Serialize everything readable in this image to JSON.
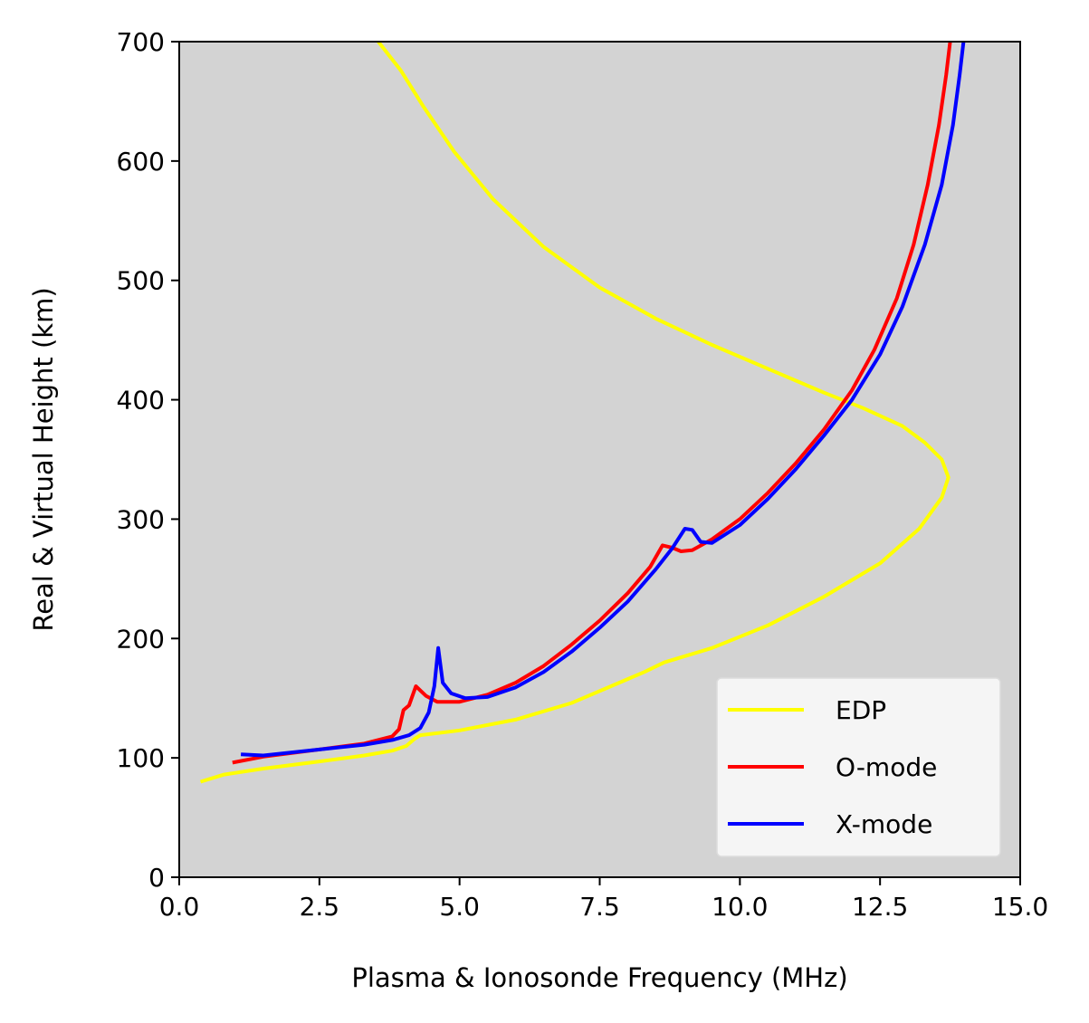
{
  "chart_data": {
    "type": "line",
    "title": "",
    "xlabel": "Plasma & Ionosonde Frequency (MHz)",
    "ylabel": "Real & Virtual Height (km)",
    "xlim": [
      0,
      15
    ],
    "ylim": [
      0,
      700
    ],
    "x_ticks": [
      0,
      2.5,
      5,
      7.5,
      10,
      12.5,
      15
    ],
    "x_tick_labels": [
      "0.0",
      "2.5",
      "5.0",
      "7.5",
      "10.0",
      "12.5",
      "15.0"
    ],
    "y_ticks": [
      0,
      100,
      200,
      300,
      400,
      500,
      600,
      700
    ],
    "y_tick_labels": [
      "0",
      "100",
      "200",
      "300",
      "400",
      "500",
      "600",
      "700"
    ],
    "grid": false,
    "background_color": "#d3d3d3",
    "legend_position": "lower-right",
    "series": [
      {
        "name": "EDP",
        "color": "#ffff00",
        "points": [
          [
            0.38,
            80
          ],
          [
            0.8,
            86
          ],
          [
            1.5,
            91
          ],
          [
            2.5,
            97
          ],
          [
            3.3,
            102
          ],
          [
            3.8,
            106
          ],
          [
            4.05,
            110
          ],
          [
            4.2,
            116
          ],
          [
            4.3,
            119
          ],
          [
            5.0,
            123
          ],
          [
            6.0,
            132
          ],
          [
            7.0,
            146
          ],
          [
            7.8,
            162
          ],
          [
            8.3,
            172
          ],
          [
            8.65,
            180
          ],
          [
            9.5,
            192
          ],
          [
            10.5,
            211
          ],
          [
            11.5,
            235
          ],
          [
            12.5,
            263
          ],
          [
            13.2,
            292
          ],
          [
            13.6,
            318
          ],
          [
            13.72,
            335
          ],
          [
            13.6,
            350
          ],
          [
            13.3,
            364
          ],
          [
            12.9,
            378
          ],
          [
            12.2,
            393
          ],
          [
            11.5,
            406
          ],
          [
            10.5,
            426
          ],
          [
            9.5,
            446
          ],
          [
            8.5,
            468
          ],
          [
            7.5,
            494
          ],
          [
            6.5,
            528
          ],
          [
            5.6,
            568
          ],
          [
            4.9,
            608
          ],
          [
            4.35,
            646
          ],
          [
            3.95,
            676
          ],
          [
            3.55,
            700
          ]
        ]
      },
      {
        "name": "O-mode",
        "color": "#ff0000",
        "points": [
          [
            0.95,
            96
          ],
          [
            1.5,
            101
          ],
          [
            2.5,
            107
          ],
          [
            3.3,
            112
          ],
          [
            3.8,
            118
          ],
          [
            3.92,
            124
          ],
          [
            4.0,
            140
          ],
          [
            4.1,
            144
          ],
          [
            4.22,
            160
          ],
          [
            4.4,
            152
          ],
          [
            4.6,
            147
          ],
          [
            5.0,
            147
          ],
          [
            5.5,
            153
          ],
          [
            6.0,
            163
          ],
          [
            6.5,
            177
          ],
          [
            7.0,
            195
          ],
          [
            7.5,
            215
          ],
          [
            8.0,
            238
          ],
          [
            8.4,
            260
          ],
          [
            8.62,
            278
          ],
          [
            8.8,
            276
          ],
          [
            8.95,
            273
          ],
          [
            9.15,
            274
          ],
          [
            9.5,
            283
          ],
          [
            10.0,
            300
          ],
          [
            10.5,
            322
          ],
          [
            11.0,
            347
          ],
          [
            11.5,
            375
          ],
          [
            12.0,
            408
          ],
          [
            12.4,
            442
          ],
          [
            12.8,
            485
          ],
          [
            13.1,
            530
          ],
          [
            13.35,
            580
          ],
          [
            13.55,
            630
          ],
          [
            13.68,
            672
          ],
          [
            13.75,
            700
          ]
        ]
      },
      {
        "name": "X-mode",
        "color": "#0000ff",
        "points": [
          [
            1.1,
            103
          ],
          [
            1.5,
            102
          ],
          [
            2.5,
            107
          ],
          [
            3.3,
            111
          ],
          [
            3.8,
            115
          ],
          [
            4.1,
            119
          ],
          [
            4.3,
            125
          ],
          [
            4.45,
            138
          ],
          [
            4.55,
            160
          ],
          [
            4.62,
            192
          ],
          [
            4.7,
            163
          ],
          [
            4.85,
            154
          ],
          [
            5.1,
            150
          ],
          [
            5.5,
            151
          ],
          [
            6.0,
            159
          ],
          [
            6.5,
            172
          ],
          [
            7.0,
            189
          ],
          [
            7.5,
            209
          ],
          [
            8.0,
            231
          ],
          [
            8.5,
            258
          ],
          [
            8.8,
            276
          ],
          [
            9.02,
            292
          ],
          [
            9.15,
            291
          ],
          [
            9.3,
            281
          ],
          [
            9.5,
            280
          ],
          [
            10.0,
            295
          ],
          [
            10.5,
            317
          ],
          [
            11.0,
            342
          ],
          [
            11.5,
            370
          ],
          [
            12.0,
            400
          ],
          [
            12.5,
            438
          ],
          [
            12.9,
            478
          ],
          [
            13.3,
            530
          ],
          [
            13.6,
            580
          ],
          [
            13.8,
            630
          ],
          [
            13.92,
            672
          ],
          [
            13.99,
            700
          ]
        ]
      }
    ]
  }
}
